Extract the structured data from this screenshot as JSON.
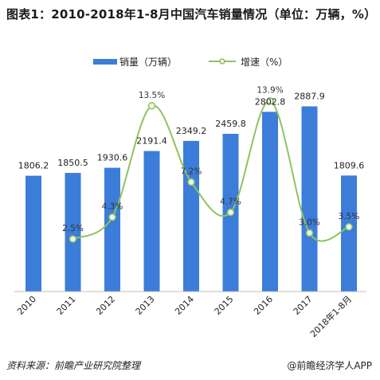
{
  "title": "图表1：2010-2018年1-8月中国汽车销量情况（单位：万辆，%）",
  "footer": {
    "source": "资料来源：前瞻产业研究院整理",
    "brand": "@前瞻经济学人APP"
  },
  "colors": {
    "bar": "#3C7DD9",
    "line": "#8DC45C",
    "marker_fill": "#F2F2F2",
    "marker_stroke": "#8DC45C"
  },
  "chart_data": {
    "type": "bar",
    "categories": [
      "2010",
      "2011",
      "2012",
      "2013",
      "2014",
      "2015",
      "2016",
      "2017",
      "2018年1-8月"
    ],
    "series": [
      {
        "name": "销量（万辆）",
        "type": "bar",
        "values": [
          1806.2,
          1850.5,
          1930.6,
          2191.4,
          2349.2,
          2459.8,
          2802.8,
          2887.9,
          1809.6
        ],
        "labels": [
          "1806.2",
          "1850.5",
          "1930.6",
          "2191.4",
          "2349.2",
          "2459.8",
          "2802.8",
          "2887.9",
          "1809.6"
        ]
      },
      {
        "name": "增速（%）",
        "type": "line",
        "values": [
          null,
          2.5,
          4.3,
          13.5,
          7.2,
          4.7,
          13.9,
          3.0,
          3.5
        ],
        "labels": [
          "",
          "2.5%",
          "4.3%",
          "13.5%",
          "7.2%",
          "4.7%",
          "13.9%",
          "3.0%",
          "3.5%"
        ]
      }
    ],
    "legend_position": "top",
    "grid": false
  }
}
